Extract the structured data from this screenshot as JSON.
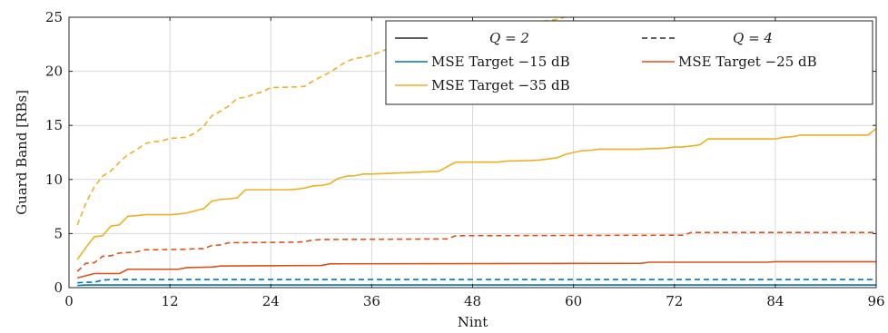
{
  "chart_data": {
    "type": "line",
    "title": "",
    "xlabel": "Nint",
    "ylabel": "Guard Band [RBs]",
    "xlim": [
      0,
      96
    ],
    "ylim": [
      0,
      25
    ],
    "xticks": [
      0,
      12,
      24,
      36,
      48,
      60,
      72,
      84,
      96
    ],
    "yticks": [
      0,
      5,
      10,
      15,
      20,
      25
    ],
    "grid": true,
    "legend_position": "top-right",
    "legend": {
      "q2_label": "Q = 2",
      "q4_label": "Q = 4",
      "entries": [
        {
          "label": "MSE Target −15 dB",
          "color": "#0072BD"
        },
        {
          "label": "MSE Target −25 dB",
          "color": "#D95319"
        },
        {
          "label": "MSE Target −35 dB",
          "color": "#EDB120"
        }
      ]
    },
    "series": [
      {
        "name": "MSE Target −15 dB, Q = 2",
        "color": "#0072BD",
        "dash": false,
        "x": [
          1,
          2,
          96
        ],
        "y": [
          0.2,
          0.25,
          0.25
        ]
      },
      {
        "name": "MSE Target −15 dB, Q = 4",
        "color": "#0072BD",
        "dash": true,
        "x": [
          1,
          2,
          3,
          4,
          5,
          96
        ],
        "y": [
          0.45,
          0.5,
          0.5,
          0.7,
          0.75,
          0.75
        ]
      },
      {
        "name": "MSE Target −25 dB, Q = 2",
        "color": "#D95319",
        "dash": false,
        "x": [
          1,
          2,
          3,
          5,
          6,
          7,
          13,
          14,
          17,
          18,
          30,
          31,
          68,
          69,
          83,
          84,
          96
        ],
        "y": [
          0.9,
          1.1,
          1.3,
          1.3,
          1.3,
          1.7,
          1.7,
          1.85,
          1.9,
          2.0,
          2.05,
          2.2,
          2.25,
          2.35,
          2.35,
          2.4,
          2.4
        ]
      },
      {
        "name": "MSE Target −25 dB, Q = 4",
        "color": "#D95319",
        "dash": true,
        "x": [
          1,
          2,
          3,
          4,
          5,
          6,
          7,
          8,
          9,
          10,
          14,
          15,
          16,
          17,
          18,
          19,
          27,
          28,
          29,
          30,
          45,
          46,
          73,
          74,
          96
        ],
        "y": [
          1.5,
          2.25,
          2.3,
          2.9,
          2.95,
          3.2,
          3.25,
          3.3,
          3.5,
          3.5,
          3.55,
          3.6,
          3.6,
          3.9,
          3.95,
          4.15,
          4.2,
          4.25,
          4.4,
          4.45,
          4.5,
          4.8,
          4.85,
          5.1,
          5.1
        ]
      },
      {
        "name": "MSE Target −35 dB, Q = 2",
        "color": "#EDB120",
        "dash": false,
        "x": [
          1,
          2,
          3,
          4,
          5,
          6,
          7,
          8,
          9,
          10,
          12,
          13,
          14,
          15,
          16,
          17,
          18,
          19,
          20,
          21,
          24,
          26,
          27,
          28,
          29,
          30,
          31,
          32,
          33,
          34,
          35,
          36,
          44,
          45,
          46,
          47,
          48,
          51,
          52,
          55,
          56,
          57,
          58,
          59,
          60,
          61,
          62,
          63,
          64,
          68,
          69,
          70,
          71,
          72,
          73,
          74,
          75,
          76,
          84,
          85,
          86,
          87,
          95,
          96
        ],
        "y": [
          2.6,
          3.7,
          4.7,
          4.8,
          5.7,
          5.8,
          6.6,
          6.65,
          6.75,
          6.75,
          6.75,
          6.8,
          6.9,
          7.1,
          7.3,
          8.0,
          8.15,
          8.2,
          8.3,
          9.05,
          9.05,
          9.05,
          9.1,
          9.2,
          9.4,
          9.45,
          9.6,
          10.1,
          10.3,
          10.35,
          10.5,
          10.5,
          10.75,
          11.2,
          11.6,
          11.6,
          11.6,
          11.6,
          11.7,
          11.75,
          11.8,
          11.9,
          12.0,
          12.3,
          12.5,
          12.65,
          12.7,
          12.8,
          12.8,
          12.8,
          12.85,
          12.85,
          12.9,
          13.0,
          13.0,
          13.1,
          13.2,
          13.75,
          13.75,
          13.9,
          13.95,
          14.1,
          14.1,
          14.7
        ]
      },
      {
        "name": "MSE Target −35 dB, Q = 4",
        "color": "#EDB120",
        "dash": true,
        "x": [
          1,
          2,
          3,
          4,
          5,
          6,
          7,
          8,
          9,
          10,
          11,
          12,
          13,
          14,
          15,
          16,
          17,
          18,
          19,
          20,
          21,
          22,
          23,
          24,
          27,
          28,
          29,
          30,
          31,
          32,
          33,
          34,
          35,
          36,
          37,
          38,
          39,
          40,
          41,
          42,
          43,
          44,
          45,
          46,
          47,
          48,
          50,
          52,
          54,
          56,
          58,
          59,
          60
        ],
        "y": [
          5.8,
          7.8,
          9.3,
          10.3,
          10.8,
          11.6,
          12.3,
          12.7,
          13.3,
          13.5,
          13.55,
          13.8,
          13.85,
          13.9,
          14.3,
          14.9,
          15.9,
          16.3,
          16.8,
          17.5,
          17.6,
          17.9,
          18.1,
          18.5,
          18.55,
          18.6,
          19.1,
          19.5,
          19.9,
          20.4,
          20.9,
          21.2,
          21.3,
          21.5,
          21.8,
          22.1,
          22.4,
          22.6,
          22.8,
          23.0,
          23.1,
          23.3,
          23.5,
          23.6,
          23.7,
          23.8,
          24.0,
          24.2,
          24.4,
          24.6,
          24.8,
          25.0,
          25.0
        ]
      }
    ]
  }
}
